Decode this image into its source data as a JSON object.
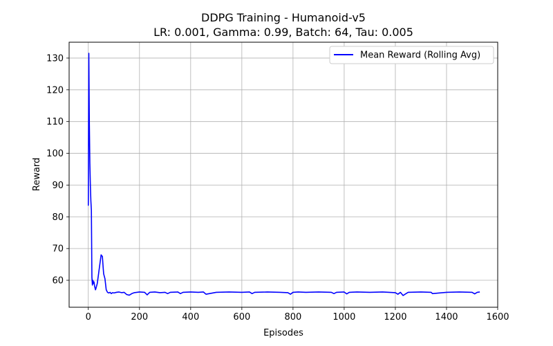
{
  "chart_data": {
    "type": "line",
    "title": "DDPG Training - Humanoid-v5",
    "subtitle": "LR: 0.001, Gamma: 0.99, Batch: 64, Tau: 0.005",
    "xlabel": "Episodes",
    "ylabel": "Reward",
    "xlim": [
      -75,
      1600
    ],
    "ylim": [
      51.5,
      135
    ],
    "xticks": [
      0,
      200,
      400,
      600,
      800,
      1000,
      1200,
      1400,
      1600
    ],
    "yticks": [
      60,
      70,
      80,
      90,
      100,
      110,
      120,
      130
    ],
    "grid": true,
    "legend_position": "top-right",
    "series": [
      {
        "name": "Mean Reward (Rolling Avg)",
        "color": "#0000ff",
        "x": [
          0,
          2,
          4,
          6,
          8,
          10,
          12,
          14,
          16,
          18,
          20,
          22,
          25,
          28,
          30,
          35,
          40,
          45,
          50,
          55,
          58,
          60,
          65,
          70,
          75,
          80,
          85,
          90,
          95,
          100,
          110,
          120,
          130,
          140,
          150,
          160,
          170,
          180,
          190,
          200,
          220,
          230,
          240,
          260,
          280,
          300,
          310,
          320,
          350,
          360,
          370,
          400,
          430,
          450,
          460,
          500,
          550,
          600,
          630,
          640,
          650,
          700,
          750,
          780,
          790,
          800,
          820,
          850,
          900,
          950,
          960,
          970,
          1000,
          1010,
          1020,
          1050,
          1100,
          1150,
          1200,
          1210,
          1220,
          1230,
          1240,
          1250,
          1300,
          1340,
          1345,
          1400,
          1450,
          1500,
          1510,
          1520,
          1530
        ],
        "y": [
          83.5,
          131.5,
          110,
          97,
          90,
          85,
          82,
          61,
          58.5,
          60,
          59,
          59.5,
          58,
          57,
          57.5,
          59,
          62,
          65,
          68,
          67.5,
          64,
          62,
          60.5,
          57,
          56.2,
          56,
          56.2,
          55.8,
          56.1,
          56,
          56.2,
          56.3,
          56.1,
          56.2,
          55.5,
          55.3,
          55.8,
          56.1,
          56.2,
          56.3,
          56.2,
          55.4,
          56.2,
          56.3,
          56.1,
          56.2,
          55.8,
          56.2,
          56.3,
          55.8,
          56.2,
          56.3,
          56.2,
          56.3,
          55.6,
          56.2,
          56.3,
          56.2,
          56.3,
          55.8,
          56.2,
          56.3,
          56.2,
          56.1,
          55.6,
          56.2,
          56.3,
          56.2,
          56.3,
          56.2,
          55.8,
          56.2,
          56.3,
          55.7,
          56.2,
          56.3,
          56.2,
          56.3,
          56.1,
          55.6,
          56.2,
          55.2,
          55.7,
          56.2,
          56.3,
          56.2,
          55.8,
          56.2,
          56.3,
          56.2,
          55.7,
          56.2,
          56.3
        ]
      }
    ]
  }
}
